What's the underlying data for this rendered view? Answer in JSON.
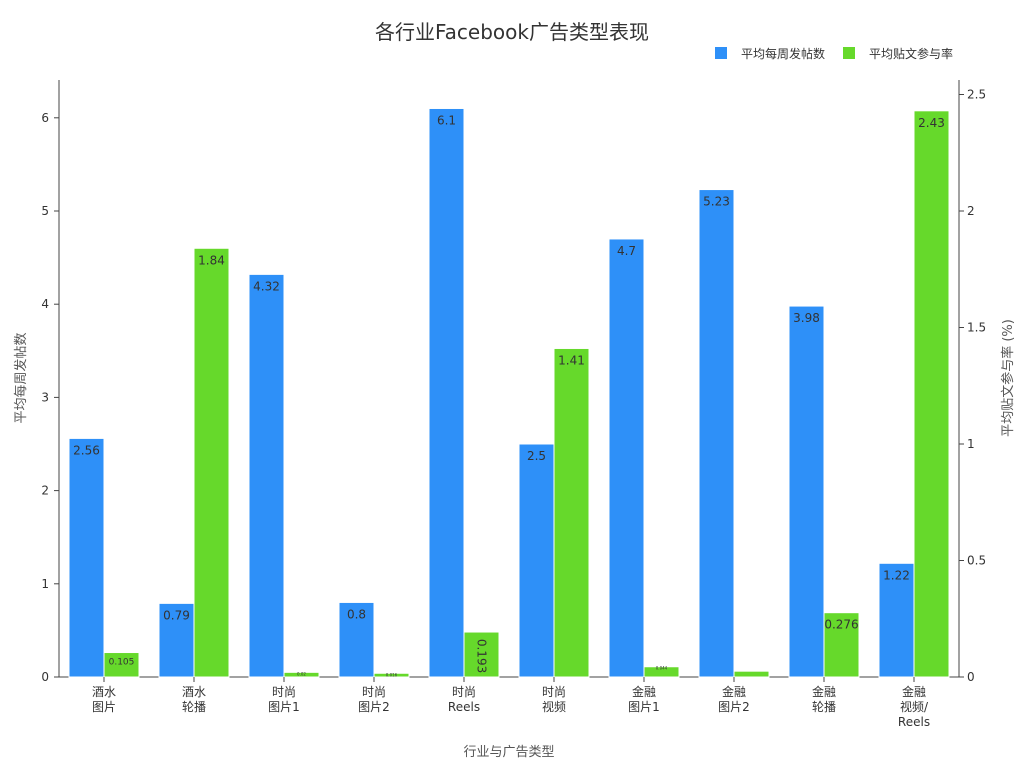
{
  "chart_data": {
    "type": "bar",
    "title": "各行业Facebook广告类型表现",
    "xlabel": "行业与广告类型",
    "ylabel_left": "平均每周发帖数",
    "ylabel_right": "平均贴文参与率 (%)",
    "categories": [
      [
        "酒水",
        "图片"
      ],
      [
        "酒水",
        "轮播"
      ],
      [
        "时尚",
        "图片1"
      ],
      [
        "时尚",
        "图片2"
      ],
      [
        "时尚",
        "Reels"
      ],
      [
        "时尚",
        "视频"
      ],
      [
        "金融",
        "图片1"
      ],
      [
        "金融",
        "图片2"
      ],
      [
        "金融",
        "轮播"
      ],
      [
        "金融",
        "视频/",
        "Reels"
      ]
    ],
    "ylim_left": [
      0,
      6.4
    ],
    "ylim_right": [
      0,
      2.55
    ],
    "yticks_left": [
      "0",
      "1",
      "2",
      "3",
      "4",
      "5",
      "6"
    ],
    "yticks_right": [
      "0",
      "0.5",
      "1",
      "1.5",
      "2",
      "2.5"
    ],
    "legend_position": "top-right",
    "series": [
      {
        "name": "平均每周发帖数",
        "axis": "left",
        "color": "#2e90f8",
        "values": [
          2.56,
          0.79,
          4.32,
          0.8,
          6.1,
          2.5,
          4.7,
          5.23,
          3.98,
          1.22
        ],
        "labels": [
          "2.56",
          "0.79",
          "4.32",
          "0.8",
          "6.1",
          "2.5",
          "4.7",
          "5.23",
          "3.98",
          "1.22"
        ]
      },
      {
        "name": "平均贴文参与率",
        "axis": "right",
        "color": "#66d92b",
        "values": [
          0.105,
          1.84,
          0.02,
          0.016,
          0.193,
          1.41,
          0.044,
          0.025,
          0.276,
          2.43
        ],
        "labels": [
          "0.105",
          "1.84",
          "0.02",
          "0.016",
          "0.193",
          "1.41",
          "0.044",
          "",
          "0.276",
          "2.43"
        ]
      }
    ]
  }
}
